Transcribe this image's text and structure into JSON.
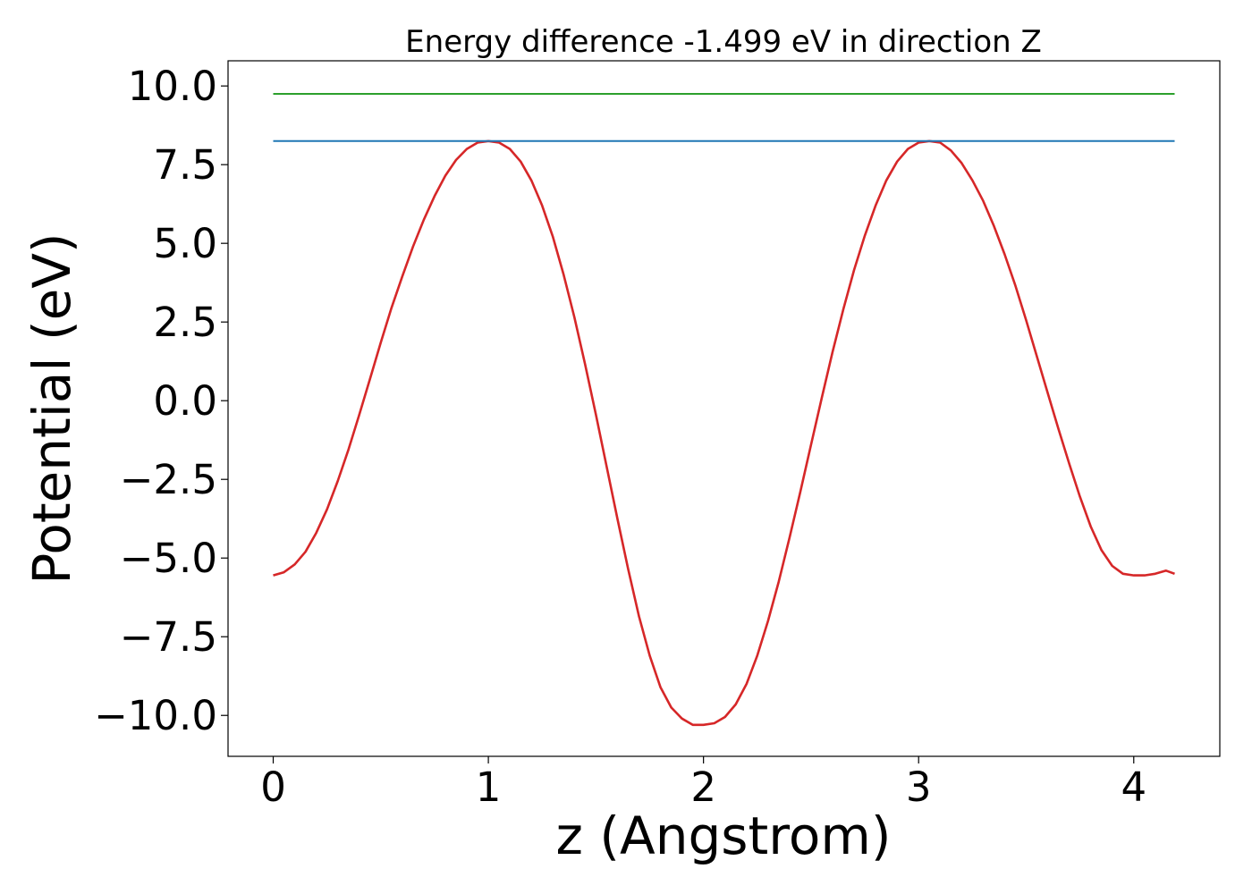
{
  "chart_data": {
    "type": "line",
    "title": "Energy difference -1.499 eV in direction Z",
    "xlabel": "z (Angstrom)",
    "ylabel": "Potential (eV)",
    "xlim": [
      -0.21,
      4.4
    ],
    "ylim": [
      -11.3,
      10.8
    ],
    "xticks": [
      0,
      1,
      2,
      3,
      4
    ],
    "xtick_labels": [
      "0",
      "1",
      "2",
      "3",
      "4"
    ],
    "yticks": [
      10.0,
      7.5,
      5.0,
      2.5,
      0.0,
      -2.5,
      -5.0,
      -7.5,
      -10.0
    ],
    "ytick_labels": [
      "10.0",
      "7.5",
      "5.0",
      "2.5",
      "0.0",
      "−2.5",
      "−5.0",
      "−7.5",
      "−10.0"
    ],
    "grid": false,
    "legend": "none",
    "series": [
      {
        "color": "#d62728",
        "x": [
          0.0,
          0.05,
          0.1,
          0.15,
          0.2,
          0.25,
          0.3,
          0.35,
          0.4,
          0.45,
          0.5,
          0.55,
          0.6,
          0.65,
          0.7,
          0.75,
          0.8,
          0.85,
          0.9,
          0.95,
          1.0,
          1.05,
          1.1,
          1.15,
          1.2,
          1.25,
          1.3,
          1.35,
          1.4,
          1.45,
          1.5,
          1.55,
          1.6,
          1.65,
          1.7,
          1.75,
          1.8,
          1.85,
          1.9,
          1.95,
          2.0,
          2.05,
          2.1,
          2.15,
          2.2,
          2.25,
          2.3,
          2.35,
          2.4,
          2.45,
          2.5,
          2.55,
          2.6,
          2.65,
          2.7,
          2.75,
          2.8,
          2.85,
          2.9,
          2.95,
          3.0,
          3.05,
          3.1,
          3.15,
          3.2,
          3.25,
          3.3,
          3.35,
          3.4,
          3.45,
          3.5,
          3.55,
          3.6,
          3.65,
          3.7,
          3.75,
          3.8,
          3.85,
          3.9,
          3.95,
          4.0,
          4.05,
          4.1,
          4.15,
          4.19
        ],
        "y": [
          -5.55,
          -5.45,
          -5.2,
          -4.8,
          -4.2,
          -3.45,
          -2.55,
          -1.55,
          -0.45,
          0.7,
          1.85,
          2.95,
          3.95,
          4.9,
          5.75,
          6.5,
          7.15,
          7.65,
          8.0,
          8.2,
          8.25,
          8.2,
          8.0,
          7.6,
          7.0,
          6.2,
          5.2,
          4.0,
          2.65,
          1.15,
          -0.45,
          -2.1,
          -3.75,
          -5.35,
          -6.85,
          -8.1,
          -9.1,
          -9.75,
          -10.1,
          -10.3,
          -10.3,
          -10.25,
          -10.05,
          -9.65,
          -9.0,
          -8.1,
          -7.0,
          -5.75,
          -4.35,
          -2.9,
          -1.4,
          0.1,
          1.55,
          2.9,
          4.15,
          5.25,
          6.2,
          7.0,
          7.6,
          8.0,
          8.2,
          8.25,
          8.2,
          7.95,
          7.55,
          7.0,
          6.35,
          5.55,
          4.65,
          3.65,
          2.55,
          1.4,
          0.25,
          -0.9,
          -2.0,
          -3.05,
          -4.0,
          -4.75,
          -5.25,
          -5.5,
          -5.55,
          -5.55,
          -5.5,
          -5.4,
          -5.5
        ]
      },
      {
        "color": "#1f77b4",
        "x": [
          0.0,
          4.19
        ],
        "y": [
          8.25,
          8.25
        ]
      },
      {
        "color": "#2ca02c",
        "x": [
          0.0,
          4.19
        ],
        "y": [
          9.75,
          9.75
        ]
      }
    ]
  }
}
